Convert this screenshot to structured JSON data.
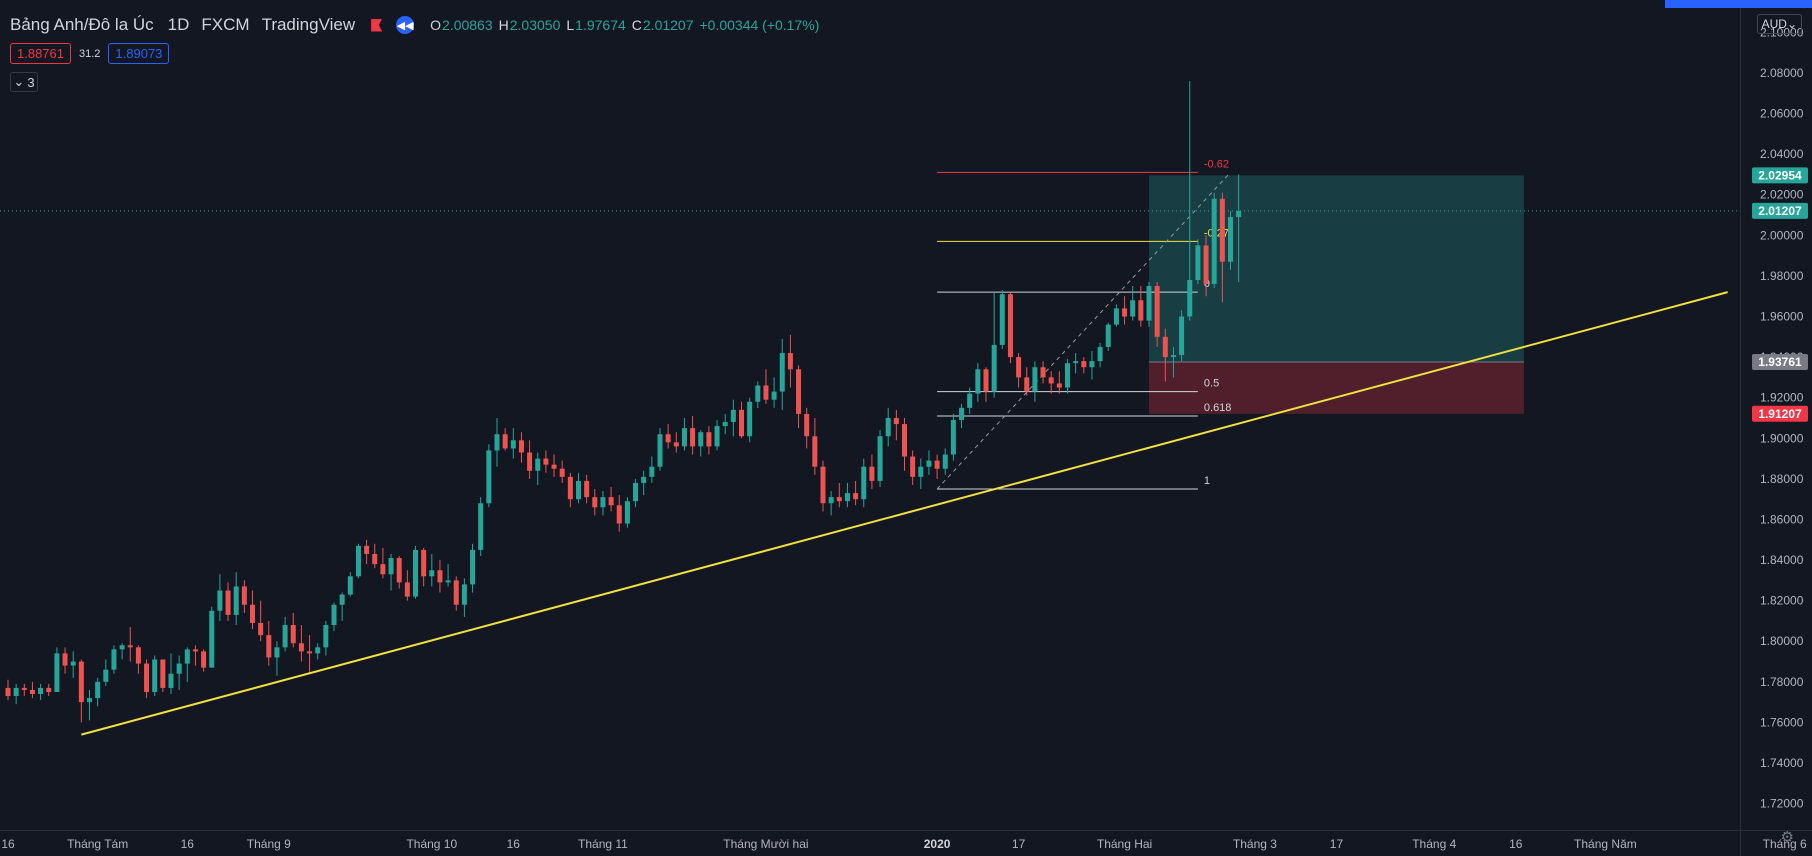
{
  "header": {
    "symbol": "Bảng Anh/Đô la Úc",
    "interval": "1D",
    "source": "FXCM",
    "feed": "TradingView",
    "ohlc": {
      "o_label": "O",
      "o": "2.00863",
      "h_label": "H",
      "h": "2.03050",
      "l_label": "L",
      "l": "1.97674",
      "c_label": "C",
      "c": "2.01207",
      "change": "+0.00344 (+0.17%)"
    },
    "sell_price": "1.88761",
    "spread": "31.2",
    "buy_price": "1.89073",
    "indicators_count": "3"
  },
  "currency": "AUD",
  "colors": {
    "bg": "#131722",
    "up": "#26a69a",
    "down": "#ef5350",
    "trend": "#f0e040",
    "accent": "#2962ff"
  },
  "chart_data": {
    "type": "candlestick",
    "ylim": [
      1.707,
      2.112
    ],
    "y_ticks": [
      "2.10000",
      "2.08000",
      "2.06000",
      "2.04000",
      "2.02000",
      "2.00000",
      "1.98000",
      "1.96000",
      "1.94000",
      "1.92000",
      "1.90000",
      "1.88000",
      "1.86000",
      "1.84000",
      "1.82000",
      "1.80000",
      "1.78000",
      "1.76000",
      "1.74000",
      "1.72000"
    ],
    "x_ticks": [
      {
        "label": "16",
        "index": 0
      },
      {
        "label": "Tháng Tám",
        "index": 11
      },
      {
        "label": "16",
        "index": 22
      },
      {
        "label": "Tháng 9",
        "index": 32
      },
      {
        "label": "Tháng 10",
        "index": 52
      },
      {
        "label": "16",
        "index": 62
      },
      {
        "label": "Tháng 11",
        "index": 73
      },
      {
        "label": "Tháng Mười hai",
        "index": 93
      },
      {
        "label": "2020",
        "index": 114
      },
      {
        "label": "17",
        "index": 124
      },
      {
        "label": "Tháng Hai",
        "index": 137
      },
      {
        "label": "Tháng 3",
        "index": 153
      },
      {
        "label": "17",
        "index": 163
      },
      {
        "label": "Tháng 4",
        "index": 175
      },
      {
        "label": "16",
        "index": 185
      },
      {
        "label": "Tháng Năm",
        "index": 196
      },
      {
        "label": "Tháng 6",
        "index": 218
      }
    ],
    "candles": [
      [
        1.777,
        1.781,
        1.771,
        1.773
      ],
      [
        1.773,
        1.779,
        1.769,
        1.777
      ],
      [
        1.777,
        1.779,
        1.773,
        1.776
      ],
      [
        1.776,
        1.78,
        1.772,
        1.774
      ],
      [
        1.774,
        1.779,
        1.771,
        1.777
      ],
      [
        1.777,
        1.779,
        1.773,
        1.775
      ],
      [
        1.775,
        1.797,
        1.775,
        1.794
      ],
      [
        1.794,
        1.797,
        1.784,
        1.788
      ],
      [
        1.788,
        1.795,
        1.782,
        1.79
      ],
      [
        1.79,
        1.791,
        1.76,
        1.77
      ],
      [
        1.77,
        1.776,
        1.761,
        1.772
      ],
      [
        1.772,
        1.782,
        1.768,
        1.78
      ],
      [
        1.78,
        1.791,
        1.778,
        1.786
      ],
      [
        1.786,
        1.798,
        1.784,
        1.796
      ],
      [
        1.796,
        1.799,
        1.791,
        1.798
      ],
      [
        1.798,
        1.807,
        1.79,
        1.797
      ],
      [
        1.797,
        1.798,
        1.784,
        1.789
      ],
      [
        1.789,
        1.791,
        1.772,
        1.775
      ],
      [
        1.775,
        1.793,
        1.773,
        1.791
      ],
      [
        1.791,
        1.791,
        1.775,
        1.777
      ],
      [
        1.777,
        1.794,
        1.774,
        1.784
      ],
      [
        1.784,
        1.793,
        1.776,
        1.789
      ],
      [
        1.789,
        1.797,
        1.78,
        1.796
      ],
      [
        1.796,
        1.798,
        1.788,
        1.795
      ],
      [
        1.795,
        1.796,
        1.785,
        1.787
      ],
      [
        1.787,
        1.817,
        1.787,
        1.815
      ],
      [
        1.815,
        1.833,
        1.81,
        1.825
      ],
      [
        1.825,
        1.829,
        1.81,
        1.813
      ],
      [
        1.813,
        1.834,
        1.808,
        1.827
      ],
      [
        1.827,
        1.83,
        1.814,
        1.818
      ],
      [
        1.818,
        1.825,
        1.806,
        1.809
      ],
      [
        1.809,
        1.82,
        1.8,
        1.803
      ],
      [
        1.803,
        1.81,
        1.788,
        1.792
      ],
      [
        1.792,
        1.8,
        1.783,
        1.797
      ],
      [
        1.797,
        1.812,
        1.795,
        1.808
      ],
      [
        1.808,
        1.814,
        1.797,
        1.799
      ],
      [
        1.799,
        1.808,
        1.79,
        1.795
      ],
      [
        1.795,
        1.803,
        1.784,
        1.794
      ],
      [
        1.794,
        1.799,
        1.791,
        1.797
      ],
      [
        1.797,
        1.81,
        1.793,
        1.808
      ],
      [
        1.808,
        1.819,
        1.805,
        1.818
      ],
      [
        1.818,
        1.824,
        1.81,
        1.823
      ],
      [
        1.823,
        1.834,
        1.822,
        1.832
      ],
      [
        1.832,
        1.848,
        1.831,
        1.847
      ],
      [
        1.847,
        1.85,
        1.838,
        1.843
      ],
      [
        1.843,
        1.848,
        1.836,
        1.838
      ],
      [
        1.838,
        1.846,
        1.831,
        1.833
      ],
      [
        1.833,
        1.843,
        1.825,
        1.841
      ],
      [
        1.841,
        1.842,
        1.826,
        1.829
      ],
      [
        1.829,
        1.835,
        1.82,
        1.822
      ],
      [
        1.822,
        1.847,
        1.821,
        1.845
      ],
      [
        1.845,
        1.846,
        1.827,
        1.832
      ],
      [
        1.832,
        1.843,
        1.827,
        1.835
      ],
      [
        1.835,
        1.84,
        1.824,
        1.829
      ],
      [
        1.829,
        1.838,
        1.827,
        1.83
      ],
      [
        1.83,
        1.832,
        1.815,
        1.818
      ],
      [
        1.818,
        1.831,
        1.812,
        1.828
      ],
      [
        1.828,
        1.848,
        1.824,
        1.845
      ],
      [
        1.845,
        1.871,
        1.842,
        1.868
      ],
      [
        1.868,
        1.897,
        1.866,
        1.894
      ],
      [
        1.894,
        1.91,
        1.886,
        1.902
      ],
      [
        1.902,
        1.905,
        1.894,
        1.895
      ],
      [
        1.895,
        1.905,
        1.89,
        1.899
      ],
      [
        1.899,
        1.903,
        1.888,
        1.893
      ],
      [
        1.893,
        1.899,
        1.88,
        1.884
      ],
      [
        1.884,
        1.893,
        1.877,
        1.89
      ],
      [
        1.89,
        1.894,
        1.883,
        1.887
      ],
      [
        1.887,
        1.892,
        1.881,
        1.885
      ],
      [
        1.885,
        1.889,
        1.878,
        1.881
      ],
      [
        1.881,
        1.883,
        1.866,
        1.87
      ],
      [
        1.87,
        1.883,
        1.868,
        1.879
      ],
      [
        1.879,
        1.882,
        1.868,
        1.871
      ],
      [
        1.871,
        1.875,
        1.862,
        1.866
      ],
      [
        1.866,
        1.874,
        1.862,
        1.871
      ],
      [
        1.871,
        1.876,
        1.864,
        1.867
      ],
      [
        1.867,
        1.872,
        1.854,
        1.858
      ],
      [
        1.858,
        1.871,
        1.856,
        1.869
      ],
      [
        1.869,
        1.88,
        1.866,
        1.878
      ],
      [
        1.878,
        1.884,
        1.872,
        1.881
      ],
      [
        1.881,
        1.891,
        1.878,
        1.886
      ],
      [
        1.886,
        1.905,
        1.884,
        1.902
      ],
      [
        1.902,
        1.907,
        1.895,
        1.898
      ],
      [
        1.898,
        1.903,
        1.893,
        1.896
      ],
      [
        1.896,
        1.91,
        1.894,
        1.905
      ],
      [
        1.905,
        1.911,
        1.892,
        1.896
      ],
      [
        1.896,
        1.904,
        1.891,
        1.903
      ],
      [
        1.903,
        1.906,
        1.892,
        1.896
      ],
      [
        1.896,
        1.909,
        1.894,
        1.906
      ],
      [
        1.906,
        1.912,
        1.902,
        1.908
      ],
      [
        1.908,
        1.919,
        1.901,
        1.914
      ],
      [
        1.914,
        1.918,
        1.9,
        1.901
      ],
      [
        1.901,
        1.92,
        1.898,
        1.918
      ],
      [
        1.918,
        1.928,
        1.915,
        1.926
      ],
      [
        1.926,
        1.934,
        1.917,
        1.919
      ],
      [
        1.919,
        1.93,
        1.915,
        1.923
      ],
      [
        1.923,
        1.949,
        1.914,
        1.942
      ],
      [
        1.942,
        1.951,
        1.925,
        1.934
      ],
      [
        1.934,
        1.936,
        1.905,
        1.912
      ],
      [
        1.912,
        1.915,
        1.895,
        1.901
      ],
      [
        1.901,
        1.91,
        1.882,
        1.886
      ],
      [
        1.886,
        1.889,
        1.864,
        1.868
      ],
      [
        1.868,
        1.874,
        1.862,
        1.871
      ],
      [
        1.871,
        1.878,
        1.866,
        1.869
      ],
      [
        1.869,
        1.878,
        1.866,
        1.873
      ],
      [
        1.873,
        1.879,
        1.867,
        1.87
      ],
      [
        1.87,
        1.89,
        1.866,
        1.886
      ],
      [
        1.886,
        1.892,
        1.875,
        1.879
      ],
      [
        1.879,
        1.904,
        1.876,
        1.901
      ],
      [
        1.901,
        1.915,
        1.896,
        1.91
      ],
      [
        1.91,
        1.914,
        1.899,
        1.907
      ],
      [
        1.907,
        1.91,
        1.884,
        1.891
      ],
      [
        1.891,
        1.894,
        1.877,
        1.881
      ],
      [
        1.881,
        1.89,
        1.875,
        1.886
      ],
      [
        1.886,
        1.894,
        1.882,
        1.889
      ],
      [
        1.889,
        1.892,
        1.88,
        1.885
      ],
      [
        1.885,
        1.895,
        1.882,
        1.892
      ],
      [
        1.892,
        1.912,
        1.889,
        1.909
      ],
      [
        1.909,
        1.917,
        1.905,
        1.915
      ],
      [
        1.915,
        1.925,
        1.912,
        1.922
      ],
      [
        1.922,
        1.937,
        1.918,
        1.934
      ],
      [
        1.934,
        1.935,
        1.918,
        1.923
      ],
      [
        1.923,
        1.972,
        1.92,
        1.946
      ],
      [
        1.946,
        1.973,
        1.944,
        1.971
      ],
      [
        1.971,
        1.972,
        1.937,
        1.94
      ],
      [
        1.94,
        1.942,
        1.925,
        1.93
      ],
      [
        1.93,
        1.935,
        1.921,
        1.923
      ],
      [
        1.923,
        1.938,
        1.918,
        1.935
      ],
      [
        1.935,
        1.938,
        1.927,
        1.93
      ],
      [
        1.93,
        1.933,
        1.922,
        1.927
      ],
      [
        1.927,
        1.933,
        1.922,
        1.925
      ],
      [
        1.925,
        1.939,
        1.922,
        1.937
      ],
      [
        1.937,
        1.942,
        1.932,
        1.938
      ],
      [
        1.938,
        1.94,
        1.932,
        1.935
      ],
      [
        1.935,
        1.943,
        1.929,
        1.938
      ],
      [
        1.938,
        1.947,
        1.935,
        1.945
      ],
      [
        1.945,
        1.957,
        1.943,
        1.956
      ],
      [
        1.956,
        1.966,
        1.955,
        1.964
      ],
      [
        1.964,
        1.97,
        1.956,
        1.96
      ],
      [
        1.96,
        1.975,
        1.958,
        1.968
      ],
      [
        1.968,
        1.975,
        1.955,
        1.958
      ],
      [
        1.958,
        1.977,
        1.955,
        1.975
      ],
      [
        1.975,
        1.977,
        1.945,
        1.95
      ],
      [
        1.95,
        1.954,
        1.928,
        1.94
      ],
      [
        1.94,
        1.945,
        1.93,
        1.941
      ],
      [
        1.941,
        1.963,
        1.938,
        1.96
      ],
      [
        1.96,
        2.076,
        1.958,
        1.978
      ],
      [
        1.978,
        1.998,
        1.976,
        1.995
      ],
      [
        1.995,
        2.0,
        1.97,
        1.976
      ],
      [
        1.976,
        2.021,
        1.974,
        2.018
      ],
      [
        2.018,
        2.021,
        1.967,
        1.987
      ],
      [
        1.987,
        2.012,
        1.983,
        2.009
      ],
      [
        2.009,
        2.03,
        1.977,
        2.012
      ]
    ],
    "fibonacci": [
      {
        "label": "-0.62",
        "value": 2.031,
        "color": "#f23645"
      },
      {
        "label": "-0.27",
        "value": 1.997,
        "color": "#f0e040"
      },
      {
        "label": "0",
        "value": 1.972,
        "color": "#d1d4dc"
      },
      {
        "label": "0.5",
        "value": 1.923,
        "color": "#d1d4dc"
      },
      {
        "label": "0.618",
        "value": 1.911,
        "color": "#d1d4dc"
      },
      {
        "label": "1",
        "value": 1.875,
        "color": "#d1d4dc"
      }
    ],
    "trendline": [
      {
        "index": 9,
        "value": 1.754
      },
      {
        "index": 211,
        "value": 1.972
      }
    ],
    "position": {
      "start_index": 140,
      "end_index": 186,
      "entry": 1.93761,
      "target": 2.02954,
      "stop": 1.91207
    },
    "price_labels": [
      {
        "value": 2.02954,
        "text": "2.02954",
        "color": "#26a69a"
      },
      {
        "value": 2.01207,
        "text": "2.01207",
        "color": "#26a69a"
      },
      {
        "value": 1.93761,
        "text": "1.93761",
        "color": "#787b86"
      },
      {
        "value": 1.91207,
        "text": "1.91207",
        "color": "#f23645"
      }
    ]
  }
}
